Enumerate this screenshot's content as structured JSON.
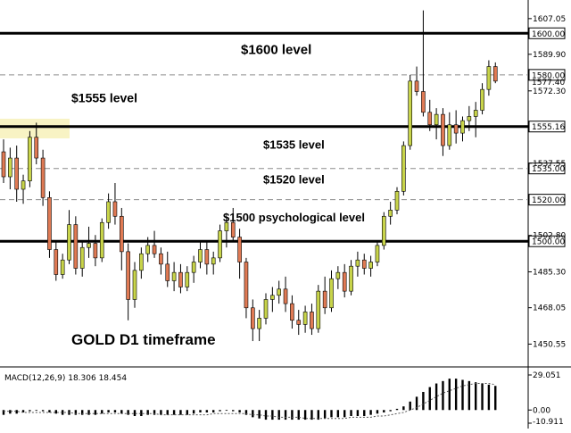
{
  "chart_data": [
    {
      "type": "candlestick",
      "title": "GOLD D1 timeframe",
      "ylim": [
        1440,
        1616
      ],
      "up_color": "#c8d44a",
      "down_color": "#e07a54",
      "wick_color": "#000000",
      "price_ticks": [
        1607.05,
        1589.9,
        1572.3,
        1537.55,
        1502.8,
        1485.3,
        1468.05,
        1450.55
      ],
      "levels": [
        {
          "price": 1600.0,
          "label": "1600.00",
          "style": "solid",
          "annotation": "$1600 level"
        },
        {
          "price": 1580.0,
          "label": "1580.00",
          "style": "dashed",
          "annotation": ""
        },
        {
          "price": 1555.16,
          "label": "1555.16",
          "style": "solid",
          "annotation": "$1555 level"
        },
        {
          "price": 1535.0,
          "label": "1535.00",
          "style": "dashed",
          "annotation": "$1535 level"
        },
        {
          "price": 1520.0,
          "label": "1520.00",
          "style": "dashed",
          "annotation": "$1520 level"
        },
        {
          "price": 1500.0,
          "label": "1500.00",
          "style": "solid",
          "annotation": "$1500 psychological level"
        }
      ],
      "current_price_label": "1577.40",
      "candles": [
        [
          1543,
          1549,
          1528,
          1531
        ],
        [
          1531,
          1545,
          1525,
          1540
        ],
        [
          1540,
          1546,
          1519,
          1525
        ],
        [
          1525,
          1532,
          1518,
          1529
        ],
        [
          1529,
          1553,
          1526,
          1550
        ],
        [
          1550,
          1557,
          1537,
          1540
        ],
        [
          1540,
          1544,
          1517,
          1521
        ],
        [
          1521,
          1524,
          1492,
          1496
        ],
        [
          1496,
          1500,
          1481,
          1484
        ],
        [
          1484,
          1494,
          1482,
          1491
        ],
        [
          1491,
          1515,
          1489,
          1508
        ],
        [
          1508,
          1512,
          1484,
          1487
        ],
        [
          1487,
          1500,
          1483,
          1497
        ],
        [
          1497,
          1507,
          1492,
          1499
        ],
        [
          1499,
          1503,
          1488,
          1492
        ],
        [
          1492,
          1511,
          1490,
          1509
        ],
        [
          1509,
          1523,
          1506,
          1519
        ],
        [
          1519,
          1528,
          1508,
          1512
        ],
        [
          1512,
          1516,
          1486,
          1495
        ],
        [
          1495,
          1499,
          1462,
          1472
        ],
        [
          1472,
          1490,
          1468,
          1486
        ],
        [
          1486,
          1497,
          1482,
          1494
        ],
        [
          1494,
          1502,
          1490,
          1498
        ],
        [
          1498,
          1505,
          1492,
          1494
        ],
        [
          1494,
          1497,
          1484,
          1489
        ],
        [
          1489,
          1495,
          1478,
          1481
        ],
        [
          1481,
          1490,
          1476,
          1485
        ],
        [
          1485,
          1489,
          1475,
          1478
        ],
        [
          1478,
          1488,
          1476,
          1485
        ],
        [
          1485,
          1493,
          1480,
          1490
        ],
        [
          1490,
          1500,
          1487,
          1496
        ],
        [
          1496,
          1500,
          1484,
          1489
        ],
        [
          1489,
          1495,
          1484,
          1492
        ],
        [
          1492,
          1508,
          1490,
          1505
        ],
        [
          1505,
          1512,
          1497,
          1509
        ],
        [
          1509,
          1516,
          1500,
          1502
        ],
        [
          1502,
          1506,
          1482,
          1490
        ],
        [
          1490,
          1492,
          1463,
          1468
        ],
        [
          1468,
          1472,
          1452,
          1458
        ],
        [
          1458,
          1467,
          1452,
          1463
        ],
        [
          1463,
          1475,
          1460,
          1472
        ],
        [
          1472,
          1478,
          1466,
          1474
        ],
        [
          1474,
          1481,
          1470,
          1477
        ],
        [
          1477,
          1483,
          1466,
          1470
        ],
        [
          1470,
          1474,
          1458,
          1462
        ],
        [
          1462,
          1467,
          1455,
          1460
        ],
        [
          1460,
          1469,
          1456,
          1466
        ],
        [
          1466,
          1470,
          1455,
          1458
        ],
        [
          1458,
          1479,
          1456,
          1476
        ],
        [
          1476,
          1483,
          1465,
          1468
        ],
        [
          1468,
          1486,
          1466,
          1482
        ],
        [
          1482,
          1488,
          1477,
          1485
        ],
        [
          1485,
          1489,
          1473,
          1476
        ],
        [
          1476,
          1491,
          1474,
          1488
        ],
        [
          1488,
          1495,
          1483,
          1491
        ],
        [
          1491,
          1494,
          1484,
          1487
        ],
        [
          1487,
          1493,
          1483,
          1490
        ],
        [
          1490,
          1500,
          1488,
          1498
        ],
        [
          1498,
          1514,
          1496,
          1512
        ],
        [
          1512,
          1519,
          1508,
          1515
        ],
        [
          1515,
          1526,
          1513,
          1524
        ],
        [
          1524,
          1548,
          1522,
          1546
        ],
        [
          1546,
          1580,
          1544,
          1577
        ],
        [
          1577,
          1584,
          1570,
          1572
        ],
        [
          1572,
          1611,
          1560,
          1562
        ],
        [
          1562,
          1568,
          1553,
          1556
        ],
        [
          1556,
          1564,
          1549,
          1561
        ],
        [
          1561,
          1564,
          1541,
          1546
        ],
        [
          1546,
          1562,
          1544,
          1556
        ],
        [
          1556,
          1563,
          1547,
          1552
        ],
        [
          1552,
          1560,
          1548,
          1558
        ],
        [
          1558,
          1565,
          1553,
          1560
        ],
        [
          1560,
          1567,
          1550,
          1563
        ],
        [
          1563,
          1576,
          1561,
          1573
        ],
        [
          1573,
          1587,
          1570,
          1584
        ],
        [
          1584,
          1586,
          1576,
          1577
        ]
      ]
    },
    {
      "type": "bar",
      "title": "MACD(12,26,9) 18.306 18.454",
      "ylim": [
        -10.911,
        29.051
      ],
      "tick_labels": [
        "29.051",
        "0.00",
        "-10.911"
      ],
      "histogram": [
        -4,
        -3,
        -3,
        -2,
        -1,
        0,
        -1,
        -2,
        -3,
        -4,
        -4,
        -4,
        -4,
        -4,
        -4,
        -3,
        -2,
        -2,
        -3,
        -4,
        -5,
        -5,
        -4,
        -4,
        -4,
        -4,
        -4,
        -4,
        -4,
        -3,
        -2,
        -2,
        -2,
        -1,
        0,
        -1,
        -2,
        -4,
        -6,
        -7,
        -8,
        -8,
        -8,
        -8,
        -8,
        -8,
        -8,
        -8,
        -8,
        -7,
        -6,
        -6,
        -6,
        -5,
        -5,
        -5,
        -4,
        -3,
        -2,
        -1,
        1,
        3,
        7,
        11,
        15,
        19,
        22,
        24,
        26,
        26,
        25,
        24,
        23,
        22,
        21,
        20
      ],
      "signal": [
        -1,
        -1,
        -1,
        -2,
        -2,
        -2,
        -2,
        -2,
        -2,
        -2,
        -2,
        -3,
        -3,
        -3,
        -3,
        -3,
        -3,
        -3,
        -3,
        -3,
        -3,
        -3,
        -3,
        -3,
        -4,
        -4,
        -4,
        -4,
        -4,
        -4,
        -4,
        -4,
        -3,
        -3,
        -3,
        -3,
        -3,
        -3,
        -4,
        -4,
        -5,
        -5,
        -6,
        -6,
        -6,
        -6,
        -7,
        -7,
        -7,
        -7,
        -7,
        -7,
        -7,
        -6,
        -6,
        -6,
        -6,
        -5,
        -5,
        -4,
        -3,
        -2,
        0,
        2,
        5,
        8,
        11,
        14,
        16,
        18,
        20,
        21,
        22,
        22,
        22,
        21
      ]
    }
  ]
}
